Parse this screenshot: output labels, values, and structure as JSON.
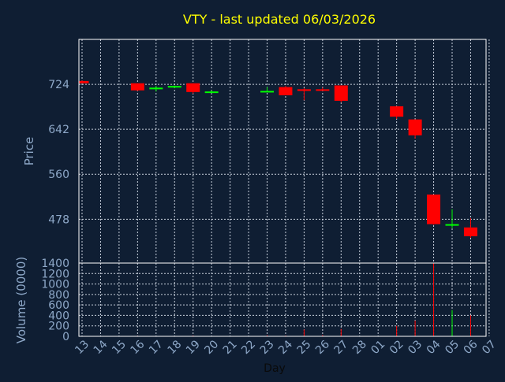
{
  "title": "VTY - last updated 06/03/2026",
  "colors": {
    "background": "#0f1e33",
    "frame": "#ffffff",
    "grid": "#c8d0dc",
    "title": "#ffff00",
    "label": "#8ea8c8",
    "up": "#00ff00",
    "down": "#ff0000"
  },
  "chart_data": [
    {
      "type": "candlestick",
      "ylabel": "Price",
      "yticks": [
        478,
        560,
        642,
        724
      ],
      "ylim": [
        398,
        806
      ],
      "x_ticks": [
        "13",
        "14",
        "15",
        "16",
        "17",
        "18",
        "19",
        "20",
        "21",
        "22",
        "23",
        "24",
        "25",
        "26",
        "27",
        "28",
        "01",
        "02",
        "03",
        "04",
        "05",
        "06",
        "07"
      ],
      "candles": [
        {
          "day": "13",
          "open": 730,
          "high": 731,
          "low": 726,
          "close": 726
        },
        {
          "day": "16",
          "open": 726,
          "high": 726,
          "low": 712,
          "close": 713
        },
        {
          "day": "17",
          "open": 715,
          "high": 721,
          "low": 711,
          "close": 718
        },
        {
          "day": "18",
          "open": 719,
          "high": 722,
          "low": 717,
          "close": 721
        },
        {
          "day": "19",
          "open": 726,
          "high": 726,
          "low": 707,
          "close": 710
        },
        {
          "day": "20",
          "open": 709,
          "high": 713,
          "low": 708,
          "close": 711
        },
        {
          "day": "23",
          "open": 712,
          "high": 719,
          "low": 710,
          "close": 712
        },
        {
          "day": "24",
          "open": 719,
          "high": 721,
          "low": 705,
          "close": 704
        },
        {
          "day": "25",
          "open": 715,
          "high": 717,
          "low": 695,
          "close": 712
        },
        {
          "day": "26",
          "open": 715,
          "high": 718,
          "low": 712,
          "close": 713
        },
        {
          "day": "27",
          "open": 722,
          "high": 722,
          "low": 691,
          "close": 694
        },
        {
          "day": "02",
          "open": 684,
          "high": 684,
          "low": 661,
          "close": 665
        },
        {
          "day": "03",
          "open": 660,
          "high": 660,
          "low": 625,
          "close": 631
        },
        {
          "day": "04",
          "open": 523,
          "high": 523,
          "low": 468,
          "close": 469
        },
        {
          "day": "05",
          "open": 467,
          "high": 496,
          "low": 462,
          "close": 469
        },
        {
          "day": "06",
          "open": 463,
          "high": 480,
          "low": 444,
          "close": 447
        }
      ]
    },
    {
      "type": "bar",
      "ylabel": "Volume (0000)",
      "xlabel": "Day",
      "yticks": [
        0,
        200,
        400,
        600,
        800,
        1000,
        1200,
        1400
      ],
      "ylim": [
        0,
        1400
      ],
      "bars": [
        {
          "day": "16",
          "value": 10,
          "dir": "down"
        },
        {
          "day": "19",
          "value": 15,
          "dir": "down"
        },
        {
          "day": "23",
          "value": 20,
          "dir": "down"
        },
        {
          "day": "24",
          "value": 15,
          "dir": "down"
        },
        {
          "day": "25",
          "value": 130,
          "dir": "down"
        },
        {
          "day": "26",
          "value": 25,
          "dir": "down"
        },
        {
          "day": "27",
          "value": 140,
          "dir": "down"
        },
        {
          "day": "02",
          "value": 200,
          "dir": "down"
        },
        {
          "day": "03",
          "value": 300,
          "dir": "down"
        },
        {
          "day": "04",
          "value": 1400,
          "dir": "down"
        },
        {
          "day": "05",
          "value": 500,
          "dir": "up"
        },
        {
          "day": "06",
          "value": 400,
          "dir": "down"
        }
      ]
    }
  ]
}
